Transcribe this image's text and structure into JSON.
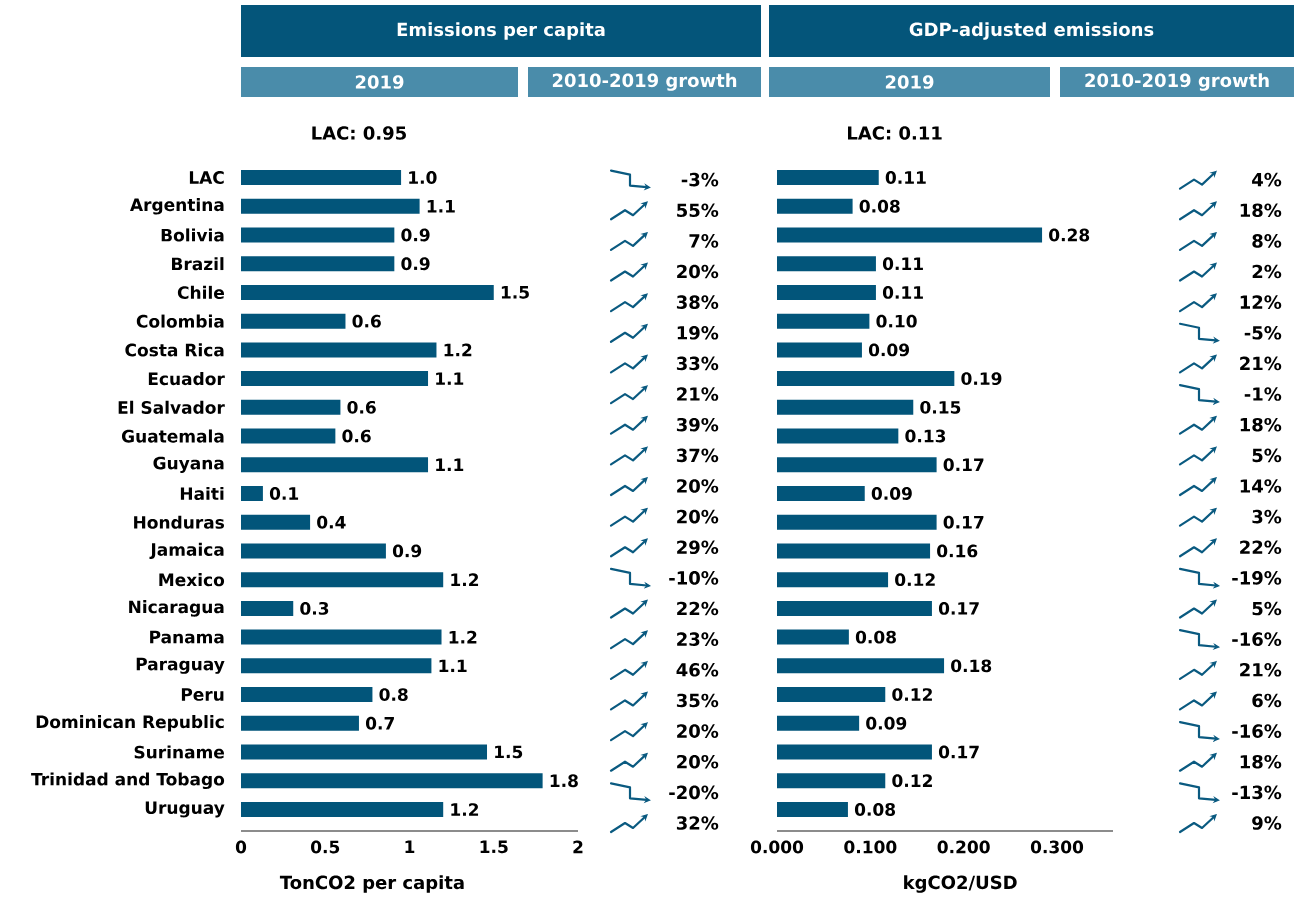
{
  "chart_data": [
    {
      "type": "bar",
      "orientation": "horizontal",
      "title": "Emissions per capita",
      "subtitle": "2019",
      "annotations": [
        "LAC: 0.95"
      ],
      "categories": [
        "LAC",
        "Argentina",
        "Bolivia",
        "Brazil",
        "Chile",
        "Colombia",
        "Costa Rica",
        "Ecuador",
        "El Salvador",
        "Guatemala",
        "Guyana",
        "Haiti",
        "Honduras",
        "Jamaica",
        "Mexico",
        "Nicaragua",
        "Panama",
        "Paraguay",
        "Peru",
        "Dominican Republic",
        "Suriname",
        "Trinidad and Tobago",
        "Uruguay"
      ],
      "values": [
        0.95,
        1.06,
        0.91,
        0.91,
        1.5,
        0.62,
        1.16,
        1.11,
        0.59,
        0.56,
        1.11,
        0.13,
        0.41,
        0.86,
        1.2,
        0.31,
        1.19,
        1.13,
        0.78,
        0.7,
        1.46,
        1.79,
        1.2
      ],
      "value_labels": [
        "1.0",
        "1.1",
        "0.9",
        "0.9",
        "1.5",
        "0.6",
        "1.2",
        "1.1",
        "0.6",
        "0.6",
        "1.1",
        "0.1",
        "0.4",
        "0.9",
        "1.2",
        "0.3",
        "1.2",
        "1.1",
        "0.8",
        "0.7",
        "1.5",
        "1.8",
        "1.2"
      ],
      "color": "#02557a",
      "xlim": [
        0,
        2
      ],
      "xticks": [
        0,
        0.5,
        1,
        1.5,
        2
      ],
      "xlabel": "TonCO2 per capita"
    },
    {
      "type": "other",
      "subtitle": "2010-2019 growth",
      "values": [
        -3,
        55,
        7,
        20,
        38,
        19,
        33,
        21,
        39,
        37,
        20,
        20,
        29,
        -10,
        22,
        23,
        46,
        35,
        20,
        20,
        -20,
        32
      ],
      "value_labels": [
        "-3%",
        "55%",
        "7%",
        "20%",
        "38%",
        "19%",
        "33%",
        "21%",
        "39%",
        "37%",
        "20%",
        "20%",
        "29%",
        "-10%",
        "22%",
        "23%",
        "46%",
        "35%",
        "20%",
        "20%",
        "-20%",
        "32%"
      ]
    },
    {
      "type": "bar",
      "orientation": "horizontal",
      "title": "GDP-adjusted emissions",
      "subtitle": "2019",
      "annotations": [
        "LAC: 0.11"
      ],
      "categories": [
        null,
        null,
        null,
        null,
        null,
        null,
        null,
        null,
        null,
        null,
        null,
        null,
        null,
        null,
        null,
        null,
        null,
        null,
        null,
        null,
        null,
        null,
        null
      ],
      "values": [
        0.109,
        0.081,
        0.284,
        0.106,
        0.106,
        0.099,
        0.091,
        0.19,
        0.146,
        0.13,
        0.171,
        0.094,
        0.171,
        0.164,
        0.119,
        0.166,
        0.077,
        0.179,
        0.116,
        0.088,
        0.166,
        0.116,
        0.076
      ],
      "value_labels": [
        "0.11",
        "0.08",
        "0.28",
        "0.11",
        "0.11",
        "0.10",
        "0.09",
        "0.19",
        "0.15",
        "0.13",
        "0.17",
        "0.09",
        "0.17",
        "0.16",
        "0.12",
        "0.17",
        "0.08",
        "0.18",
        "0.12",
        "0.09",
        "0.17",
        "0.12",
        "0.08"
      ],
      "color": "#02557a",
      "xlim": [
        0,
        0.36
      ],
      "xticks": [
        {
          "value": 0,
          "label": "0.000"
        },
        {
          "value": 0.1,
          "label": "0.100"
        },
        {
          "value": 0.2,
          "label": "0.200"
        },
        {
          "value": 0.3,
          "label": "0.300"
        }
      ],
      "xlabel": "kgCO2/USD"
    },
    {
      "type": "other",
      "subtitle": "2010-2019 growth",
      "values": [
        4,
        18,
        8,
        2,
        12,
        -5,
        21,
        -1,
        18,
        5,
        14,
        3,
        22,
        -19,
        5,
        -16,
        21,
        6,
        -16,
        18,
        -13,
        9
      ],
      "value_labels": [
        "4%",
        "18%",
        "8%",
        "2%",
        "12%",
        "-5%",
        "21%",
        "-1%",
        "18%",
        "5%",
        "14%",
        "3%",
        "22%",
        "-19%",
        "5%",
        "-16%",
        "21%",
        "6%",
        "-16%",
        "18%",
        "-13%",
        "9%"
      ]
    }
  ]
}
